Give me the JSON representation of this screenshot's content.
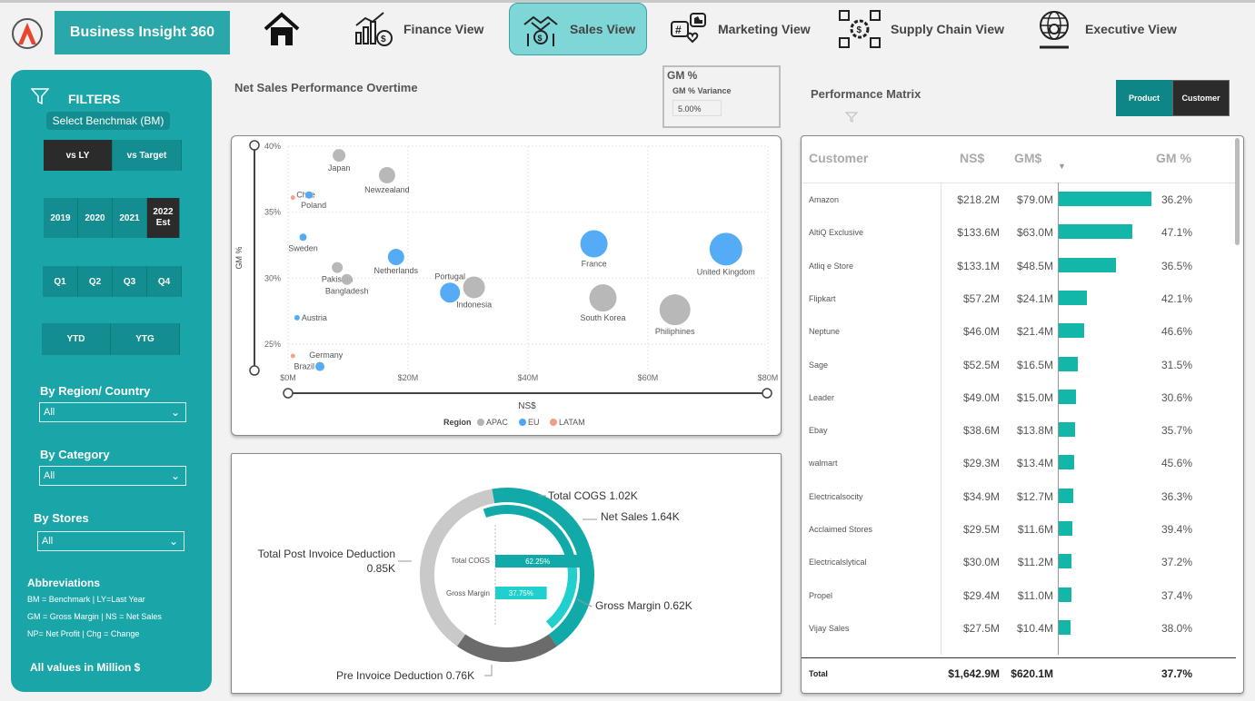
{
  "app": {
    "brand": "Business Insight 360"
  },
  "nav": {
    "finance": "Finance View",
    "sales": "Sales View",
    "marketing": "Marketing View",
    "supply": "Supply Chain View",
    "executive": "Executive View"
  },
  "sidebar": {
    "filters": "FILTERS",
    "benchmark_label": "Select Benchmak (BM)",
    "bm_options": [
      "vs LY",
      "vs Target"
    ],
    "years": [
      "2019",
      "2020",
      "2021",
      "2022 Est"
    ],
    "quarters": [
      "Q1",
      "Q2",
      "Q3",
      "Q4"
    ],
    "periods": [
      "YTD",
      "YTG"
    ],
    "region_label": "By Region/ Country",
    "region_value": "All",
    "category_label": "By Category",
    "category_value": "All",
    "stores_label": "By Stores",
    "stores_value": "All",
    "abbr_title": "Abbreviations",
    "abbr_lines": [
      "BM = Benchmark | LY=Last Year",
      "GM = Gross Margin | NS = Net Sales",
      "NP= Net Profit | Chg = Change"
    ],
    "footer": "All values in Million $"
  },
  "gm_card": {
    "title": "GM %",
    "subtitle": "GM % Variance",
    "value": "5.00%"
  },
  "scatter_title": "Net Sales Performance Overtime",
  "matrix_title": "Performance Matrix",
  "matrix_toggle": [
    "Product",
    "Customer"
  ],
  "colors": {
    "teal": "#1aa6a8",
    "apac": "#b4b4b4",
    "eu": "#4da6f5",
    "latam": "#f0a080",
    "bar": "#13b7aa"
  },
  "chart_data": [
    {
      "type": "scatter",
      "xlabel": "NS$",
      "ylabel": "GM %",
      "xlim": [
        0,
        80
      ],
      "ylim": [
        23,
        40
      ],
      "x_ticks": [
        "$0M",
        "$20M",
        "$40M",
        "$60M",
        "$80M"
      ],
      "y_ticks": [
        "25%",
        "30%",
        "35%",
        "40%"
      ],
      "legend_title": "Region",
      "legend": [
        "APAC",
        "EU",
        "LATAM"
      ],
      "points": [
        {
          "label": "Japan",
          "x": 8.5,
          "y": 39.3,
          "r": 7,
          "region": "APAC"
        },
        {
          "label": "Newzealand",
          "x": 16.5,
          "y": 37.8,
          "r": 9,
          "region": "APAC"
        },
        {
          "label": "Chile",
          "x": 0.8,
          "y": 36.1,
          "r": 2.5,
          "region": "LATAM"
        },
        {
          "label": "Poland",
          "x": 3.5,
          "y": 36.3,
          "r": 4,
          "region": "EU"
        },
        {
          "label": "Sweden",
          "x": 2.5,
          "y": 33.1,
          "r": 4,
          "region": "EU"
        },
        {
          "label": "Netherlands",
          "x": 18.0,
          "y": 31.6,
          "r": 9,
          "region": "EU"
        },
        {
          "label": "Pakistan",
          "x": 8.2,
          "y": 30.8,
          "r": 6,
          "region": "APAC"
        },
        {
          "label": "Bangladesh",
          "x": 9.8,
          "y": 29.9,
          "r": 6,
          "region": "APAC"
        },
        {
          "label": "Portugal",
          "x": 27.0,
          "y": 28.9,
          "r": 11,
          "region": "EU"
        },
        {
          "label": "Indonesia",
          "x": 31.0,
          "y": 29.3,
          "r": 12,
          "region": "APAC"
        },
        {
          "label": "France",
          "x": 51.0,
          "y": 32.6,
          "r": 15,
          "region": "EU"
        },
        {
          "label": "United Kingdom",
          "x": 73.0,
          "y": 32.2,
          "r": 18,
          "region": "EU"
        },
        {
          "label": "South Korea",
          "x": 52.5,
          "y": 28.5,
          "r": 15,
          "region": "APAC"
        },
        {
          "label": "Philiphines",
          "x": 64.5,
          "y": 27.6,
          "r": 17,
          "region": "APAC"
        },
        {
          "label": "Austria",
          "x": 1.5,
          "y": 27.0,
          "r": 3,
          "region": "EU"
        },
        {
          "label": "Germany",
          "x": 0.8,
          "y": 24.1,
          "r": 2.5,
          "region": "LATAM"
        },
        {
          "label": "Brazil",
          "x": 5.3,
          "y": 23.3,
          "r": 5,
          "region": "EU"
        }
      ]
    },
    {
      "type": "donut",
      "labels": {
        "cogs": "Total COGS 1.02K",
        "netsales": "Net Sales 1.64K",
        "gm": "Gross Margin 0.62K",
        "postinv": "Total Post Invoice Deduction",
        "postinv_val": "0.85K",
        "preinv": "Pre Invoice Deduction 0.76K"
      },
      "inner_bars": [
        {
          "label": "Total COGS",
          "value": 62.25,
          "text": "62.25%"
        },
        {
          "label": "Gross Margin",
          "value": 37.75,
          "text": "37.75%"
        }
      ]
    },
    {
      "type": "table",
      "columns": [
        "Customer",
        "NS$",
        "GM$",
        "GM %"
      ],
      "rows": [
        {
          "name": "Amazon",
          "ns": "$218.2M",
          "gm": "$79.0M",
          "gmv": 79.0,
          "pct": "36.2%"
        },
        {
          "name": "AltiQ Exclusive",
          "ns": "$133.6M",
          "gm": "$63.0M",
          "gmv": 63.0,
          "pct": "47.1%"
        },
        {
          "name": "Atliq e Store",
          "ns": "$133.1M",
          "gm": "$48.5M",
          "gmv": 48.5,
          "pct": "36.5%"
        },
        {
          "name": "Flipkart",
          "ns": "$57.2M",
          "gm": "$24.1M",
          "gmv": 24.1,
          "pct": "42.1%"
        },
        {
          "name": "Neptune",
          "ns": "$46.0M",
          "gm": "$21.4M",
          "gmv": 21.4,
          "pct": "46.6%"
        },
        {
          "name": "Sage",
          "ns": "$52.5M",
          "gm": "$16.5M",
          "gmv": 16.5,
          "pct": "31.5%"
        },
        {
          "name": "Leader",
          "ns": "$49.0M",
          "gm": "$15.0M",
          "gmv": 15.0,
          "pct": "30.6%"
        },
        {
          "name": "Ebay",
          "ns": "$38.6M",
          "gm": "$13.8M",
          "gmv": 13.8,
          "pct": "35.7%"
        },
        {
          "name": "walmart",
          "ns": "$29.3M",
          "gm": "$13.4M",
          "gmv": 13.4,
          "pct": "45.6%"
        },
        {
          "name": "Electricalsocity",
          "ns": "$34.9M",
          "gm": "$12.7M",
          "gmv": 12.7,
          "pct": "36.3%"
        },
        {
          "name": "Acclaimed Stores",
          "ns": "$29.5M",
          "gm": "$11.6M",
          "gmv": 11.6,
          "pct": "39.4%"
        },
        {
          "name": "Electricalslytical",
          "ns": "$30.0M",
          "gm": "$11.2M",
          "gmv": 11.2,
          "pct": "37.2%"
        },
        {
          "name": "Propel",
          "ns": "$29.4M",
          "gm": "$11.0M",
          "gmv": 11.0,
          "pct": "37.4%"
        },
        {
          "name": "Vijay Sales",
          "ns": "$27.5M",
          "gm": "$10.4M",
          "gmv": 10.4,
          "pct": "38.0%"
        }
      ],
      "total": {
        "label": "Total",
        "ns": "$1,642.9M",
        "gm": "$620.1M",
        "pct": "37.7%"
      }
    }
  ]
}
